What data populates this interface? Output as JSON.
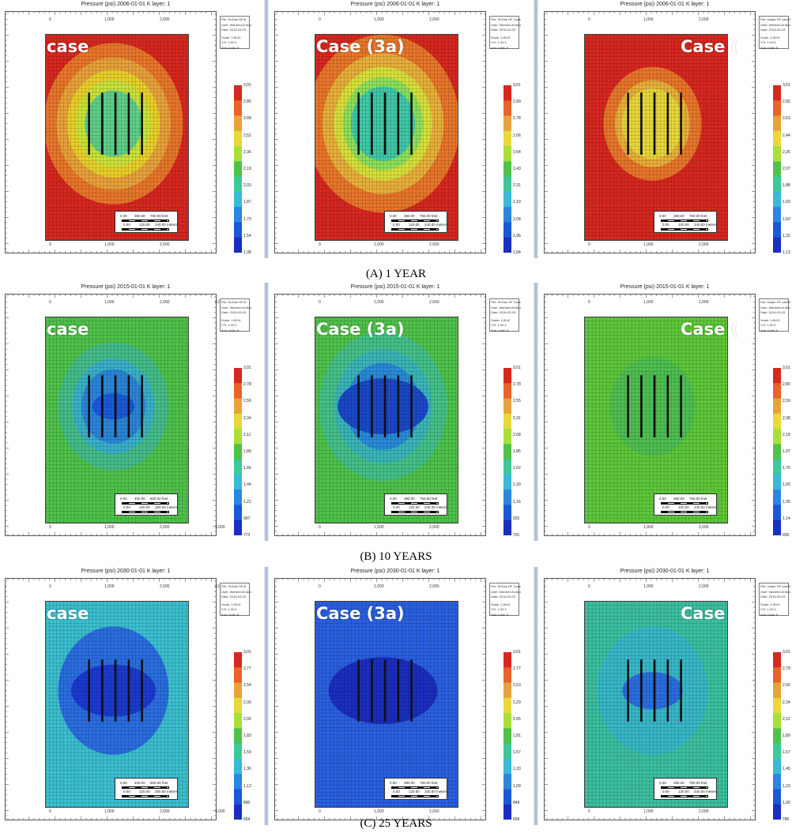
{
  "rows": [
    {
      "caption": "(A) 1 YEAR",
      "panels": [
        {
          "title": "Pressure (psi) 2006-01-01    K layer: 1",
          "case_label": "case",
          "legend": [
            "3,013",
            "2,850",
            "2,687",
            "2,524",
            "2,361",
            "2,198",
            "2,035",
            "1,872",
            "1,709",
            "1,546",
            "1,383"
          ],
          "info": [
            "File: SnGas HF.irf",
            "User: Waheed Al Atoni",
            "Date: 2016-03-03",
            "Scale: 1:8142",
            "Y/X: 1.00:1",
            "Axis Units: ft"
          ],
          "scale": [
            "0.00",
            "390.00",
            "750.00 feet",
            "0.00",
            "120.00",
            "240.00 meters"
          ],
          "top_ticks": [
            "0",
            "1,000",
            "2,000"
          ],
          "pattern": {
            "outer_color": "#d7281f",
            "rings": [
              [
                "#e8762a",
                0.78
              ],
              [
                "#e8a23a",
                0.64
              ],
              [
                "#e8d02a",
                0.52
              ],
              [
                "#c9e33a",
                0.42
              ],
              [
                "#5fd08a",
                0.32
              ]
            ],
            "core": []
          }
        },
        {
          "title": "Pressure (psi) 2006-01-01    K layer: 1",
          "case_label": "Case (3a)",
          "legend": [
            "3,013",
            "2,896",
            "2,780",
            "2,663",
            "2,547",
            "2,430",
            "2,314",
            "2,197",
            "2,081",
            "1,964",
            "1,848"
          ],
          "info": [
            "File: SnGas HF Case3a",
            "User: Waheed Al Atoni",
            "Date: 2016-03-03",
            "Scale: 1:8142",
            "Y/X: 1.00:1",
            "Axis Units: ft"
          ],
          "scale": [
            "0.00",
            "390.00",
            "750.00 feet",
            "0.00",
            "120.00",
            "240.00 meters"
          ],
          "top_ticks": [
            "0",
            "1,000",
            "2,000"
          ],
          "pattern": {
            "outer_color": "#d7281f",
            "rings": [
              [
                "#e8762a",
                0.86
              ],
              [
                "#e8b03a",
                0.68
              ],
              [
                "#d8e03a",
                0.55
              ],
              [
                "#8ee05a",
                0.45
              ],
              [
                "#3fc9a8",
                0.36
              ]
            ],
            "core": []
          }
        },
        {
          "title": "Pressure (psi) 2006-01-01    K layer: 1",
          "case_label": "Case (",
          "legend": [
            "3,013",
            "2,824",
            "2,636",
            "2,448",
            "2,260",
            "2,072",
            "1,884",
            "1,696",
            "1,508",
            "1,320",
            "1,132"
          ],
          "info": [
            "File: shape HF case3b",
            "User: Waheed Al Atoni",
            "Date: 2016-03-03",
            "Scale: 1:8143",
            "Y/X: 1.00:1",
            "Axis Units: ft"
          ],
          "scale": [
            "0.00",
            "390.00",
            "750.00 feet",
            "0.00",
            "120.00",
            "240.00 meters"
          ],
          "top_ticks": [
            "0",
            "1,000",
            "2,000"
          ],
          "pattern": {
            "outer_color": "#d7281f",
            "rings": [
              [
                "#e8762a",
                0.55
              ],
              [
                "#e8b03a",
                0.42
              ],
              [
                "#e8d83a",
                0.34
              ]
            ],
            "core": []
          }
        }
      ]
    },
    {
      "caption": "(B) 10 YEARS",
      "panels": [
        {
          "title": "Pressure (psi) 2015-01-01    K layer: 1",
          "case_label": "case",
          "legend": [
            "3,013",
            "2,789",
            "2,565",
            "2,341",
            "2,117",
            "1,893",
            "1,669",
            "1,445",
            "1,221",
            "997",
            "773"
          ],
          "info": [
            "File: SnGas HF.irf",
            "User: Waheed Al Atoni",
            "Date: 2016-03-03",
            "Scale: 1:9214",
            "Y/X: 1.00:1",
            "Axis Units: ft"
          ],
          "scale": [
            "0.00",
            "400.00",
            "800.00 feet",
            "0.00",
            "120.00",
            "250.00 meters"
          ],
          "top_ticks": [
            "0",
            "1,000",
            "2,000",
            "3,000"
          ],
          "pattern": {
            "outer_color": "#4fc24a",
            "rings": [
              [
                "#45bd8a",
                0.62
              ],
              [
                "#3ab0c8",
                0.46
              ],
              [
                "#2a86d8",
                0.36
              ]
            ],
            "core": [
              [
                "#1a5ad8",
                0.14
              ]
            ]
          }
        },
        {
          "title": "Pressure (psi) 2015-01-01    K layer: 1",
          "case_label": "Case (3a)",
          "legend": [
            "3,013",
            "2,781",
            "2,550",
            "2,319",
            "2,088",
            "1,857",
            "1,626",
            "1,395",
            "1,163",
            "932",
            "701"
          ],
          "info": [
            "File: SnGas HF Case3a",
            "User: Waheed Al Atoni",
            "Date: 2016-03-03",
            "Scale: 1:8142",
            "Y/X: 1.00:1",
            "Axis Units: ft"
          ],
          "scale": [
            "0.00",
            "390.00",
            "750.00 feet",
            "0.00",
            "120.00",
            "240.00 meters"
          ],
          "top_ticks": [
            "0",
            "1,000",
            "2,000"
          ],
          "pattern": {
            "outer_color": "#4fc24a",
            "rings": [
              [
                "#45c08a",
                0.72
              ],
              [
                "#3ab5b8",
                0.55
              ],
              [
                "#2a8ad8",
                0.42
              ]
            ],
            "core": [
              [
                "#1a48c8",
                0.3
              ]
            ]
          }
        },
        {
          "title": "Pressure (psi) 2015-01-01    K layer: 1",
          "case_label": "Case (",
          "legend": [
            "3,013",
            "2,805",
            "2,597",
            "2,389",
            "2,182",
            "1,974",
            "1,766",
            "1,558",
            "1,351",
            "1,143",
            "935"
          ],
          "info": [
            "File: shape HF case3b",
            "User: Waheed Al Atoni",
            "Date: 2016-03-03",
            "Scale: 1:8143",
            "Y/X: 1.00:1",
            "Axis Units: ft"
          ],
          "scale": [
            "0.00",
            "390.00",
            "750.00 feet",
            "0.00",
            "120.00",
            "240.00 meters"
          ],
          "top_ticks": [
            "0",
            "1,000",
            "2,000"
          ],
          "pattern": {
            "outer_color": "#5ec83a",
            "rings": [
              [
                "#4fbf52",
                0.48
              ]
            ],
            "core": []
          }
        }
      ]
    },
    {
      "caption": "(C) 25 YEARS",
      "panels": [
        {
          "title": "Pressure (psi) 2030-01-01    K layer: 1",
          "case_label": "case",
          "legend": [
            "3,013",
            "2,777",
            "2,541",
            "2,305",
            "2,069",
            "1,833",
            "1,598",
            "1,362",
            "1,126",
            "890",
            "654"
          ],
          "info": [
            "File: SnGas HF.irf",
            "User: Waheed Al Atoni",
            "Date: 2016-03-03",
            "Scale: 1:9214",
            "Y/X: 1.00:1",
            "Axis Units: ft"
          ],
          "scale": [
            "0.00",
            "400.00",
            "800.00 feet",
            "0.00",
            "120.00",
            "250.00 meters"
          ],
          "top_ticks": [
            "0",
            "1,000",
            "2,000",
            "3,000"
          ],
          "pattern": {
            "outer_color": "#3cc0d0",
            "rings": [
              [
                "#2a6ee0",
                0.62
              ]
            ],
            "core": [
              [
                "#1a3ad0",
                0.28
              ]
            ]
          }
        },
        {
          "title": "Pressure (psi) 2030-01-01    K layer: 1",
          "case_label": "Case (3a)",
          "legend": [
            "3,013",
            "2,772",
            "2,532",
            "2,291",
            "2,051",
            "1,811",
            "1,570",
            "1,330",
            "1,090",
            "849",
            "609"
          ],
          "info": [
            "File: SnGas HF Case3a",
            "User: Waheed Al Atoni",
            "Date: 2016-03-03",
            "Scale: 1:8142",
            "Y/X: 1.00:1",
            "Axis Units: ft"
          ],
          "scale": [
            "0.00",
            "390.00",
            "750.00 feet",
            "0.00",
            "120.00",
            "240.00 meters"
          ],
          "top_ticks": [
            "0",
            "1,000",
            "2,000"
          ],
          "pattern": {
            "outer_color": "#2a60e0",
            "rings": [
              [
                "#2a60e0",
                0.9
              ]
            ],
            "core": [
              [
                "#1a2ec0",
                0.36
              ]
            ]
          }
        },
        {
          "title": "Pressure (psi) 2030-01-01    K layer: 1",
          "case_label": "Case",
          "legend": [
            "3,013",
            "2,790",
            "2,567",
            "2,344",
            "2,122",
            "1,899",
            "1,676",
            "1,454",
            "1,231",
            "1,008",
            "786"
          ],
          "info": [
            "File: shape HF case3b",
            "User: Waheed Al Atoni",
            "Date: 2016-03-03",
            "Scale: 1:8143",
            "Y/X: 1.00:1",
            "Axis Units: ft"
          ],
          "scale": [
            "0.00",
            "390.00",
            "750.00 feet",
            "0.00",
            "120.00",
            "240.00 meters"
          ],
          "top_ticks": [
            "0",
            "1,000",
            "2,000"
          ],
          "pattern": {
            "outer_color": "#3cc0a0",
            "rings": [
              [
                "#38b8c8",
                0.62
              ]
            ],
            "core": [
              [
                "#2a6ee0",
                0.2
              ]
            ]
          }
        }
      ]
    }
  ],
  "colors": {
    "legend_ramp": [
      "#d7281f",
      "#e8622a",
      "#e8a23a",
      "#e8d83a",
      "#a8e03a",
      "#4fc24a",
      "#3ec89a",
      "#3ab8d8",
      "#2a86e0",
      "#1a58d8",
      "#1a2ec0"
    ],
    "well": "#111111",
    "separator": "#9fb3c8"
  }
}
